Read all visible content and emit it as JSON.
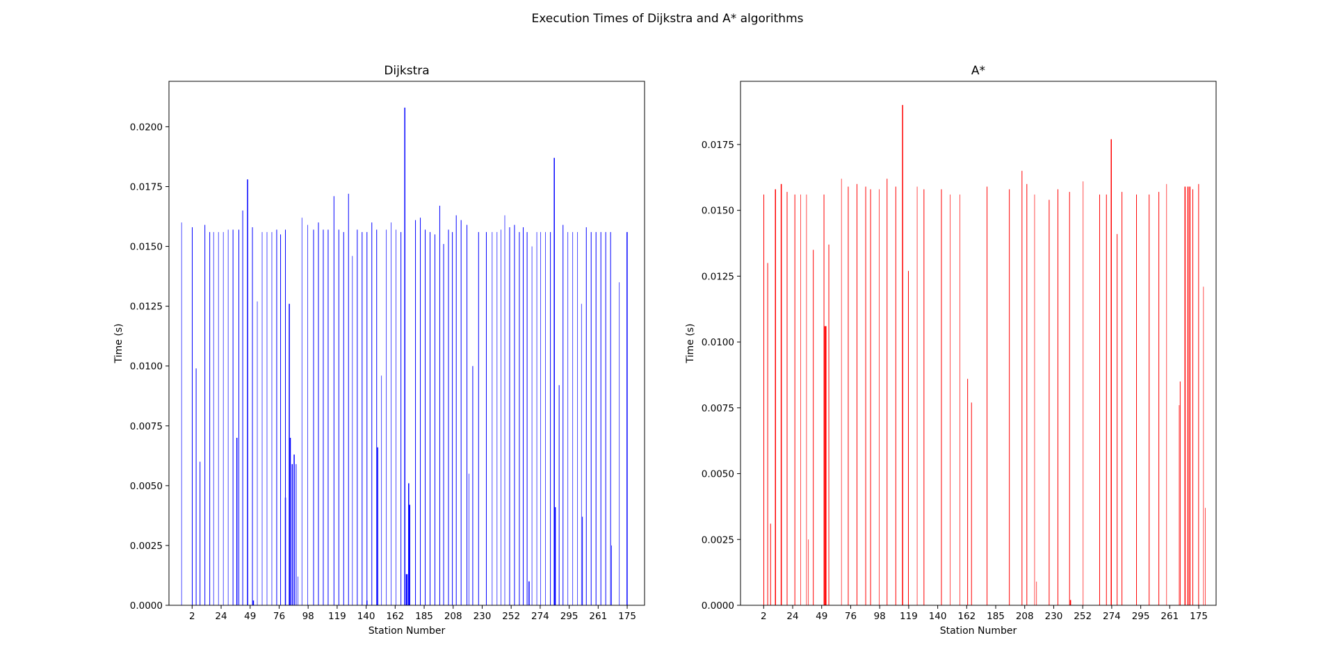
{
  "figure_title": "Execution Times of Dijkstra and A* algorithms",
  "chart_data": [
    {
      "type": "bar",
      "title": "Dijkstra",
      "xlabel": "Station Number",
      "ylabel": "Time (s)",
      "ylim": [
        0,
        0.0219
      ],
      "y_ticks": [
        "0.0000",
        "0.0025",
        "0.0050",
        "0.0075",
        "0.0100",
        "0.0125",
        "0.0150",
        "0.0175",
        "0.0200"
      ],
      "y_tick_values": [
        0,
        0.0025,
        0.005,
        0.0075,
        0.01,
        0.0125,
        0.015,
        0.0175,
        0.02
      ],
      "x_tick_labels": [
        "2",
        "24",
        "49",
        "76",
        "98",
        "119",
        "140",
        "162",
        "185",
        "208",
        "230",
        "252",
        "274",
        "295",
        "261",
        "175"
      ],
      "color": "#0000ff",
      "grid": false,
      "bars": [
        {
          "x": 1.3,
          "y": 0.016,
          "w": 0.7
        },
        {
          "x": 2.4,
          "y": 0.0158,
          "w": 1.0
        },
        {
          "x": 2.8,
          "y": 0.0099,
          "w": 1.0
        },
        {
          "x": 3.2,
          "y": 0.006,
          "w": 1.0
        },
        {
          "x": 3.7,
          "y": 0.0159,
          "w": 1.0
        },
        {
          "x": 4.2,
          "y": 0.0156,
          "w": 1.0
        },
        {
          "x": 4.6,
          "y": 0.0156,
          "w": 0.7
        },
        {
          "x": 5.1,
          "y": 0.0156,
          "w": 0.7
        },
        {
          "x": 5.6,
          "y": 0.0156,
          "w": 0.7
        },
        {
          "x": 6.1,
          "y": 0.0157,
          "w": 0.7
        },
        {
          "x": 6.6,
          "y": 0.0157,
          "w": 1.0
        },
        {
          "x": 7.0,
          "y": 0.007,
          "w": 1.5
        },
        {
          "x": 7.2,
          "y": 0.0157,
          "w": 1.0
        },
        {
          "x": 7.6,
          "y": 0.0165,
          "w": 1.0
        },
        {
          "x": 8.1,
          "y": 0.0178,
          "w": 1.5
        },
        {
          "x": 8.6,
          "y": 0.0158,
          "w": 1.0
        },
        {
          "x": 8.7,
          "y": 0.0002,
          "w": 1.5
        },
        {
          "x": 9.1,
          "y": 0.0127,
          "w": 0.7
        },
        {
          "x": 9.6,
          "y": 0.0156,
          "w": 0.7
        },
        {
          "x": 10.1,
          "y": 0.0156,
          "w": 0.7
        },
        {
          "x": 10.6,
          "y": 0.0156,
          "w": 0.7
        },
        {
          "x": 11.1,
          "y": 0.0157,
          "w": 1.0
        },
        {
          "x": 11.5,
          "y": 0.0155,
          "w": 1.0
        },
        {
          "x": 12.0,
          "y": 0.0157,
          "w": 1.0
        },
        {
          "x": 12.0,
          "y": 0.0045,
          "w": 1.5
        },
        {
          "x": 12.4,
          "y": 0.0126,
          "w": 1.5
        },
        {
          "x": 12.5,
          "y": 0.007,
          "w": 1.5
        },
        {
          "x": 12.7,
          "y": 0.0059,
          "w": 1.5
        },
        {
          "x": 12.9,
          "y": 0.0063,
          "w": 1.5
        },
        {
          "x": 13.1,
          "y": 0.0059,
          "w": 1.0
        },
        {
          "x": 13.3,
          "y": 0.0012,
          "w": 0.7
        },
        {
          "x": 13.7,
          "y": 0.0162,
          "w": 0.7
        },
        {
          "x": 14.3,
          "y": 0.0159,
          "w": 0.7
        },
        {
          "x": 14.9,
          "y": 0.0157,
          "w": 1.0
        },
        {
          "x": 15.4,
          "y": 0.016,
          "w": 1.0
        },
        {
          "x": 15.9,
          "y": 0.0157,
          "w": 1.0
        },
        {
          "x": 16.4,
          "y": 0.0157,
          "w": 1.0
        },
        {
          "x": 17.0,
          "y": 0.0171,
          "w": 1.0
        },
        {
          "x": 17.5,
          "y": 0.0157,
          "w": 1.0
        },
        {
          "x": 18.0,
          "y": 0.0156,
          "w": 1.0
        },
        {
          "x": 18.5,
          "y": 0.0172,
          "w": 1.0
        },
        {
          "x": 18.9,
          "y": 0.0146,
          "w": 0.7
        },
        {
          "x": 19.4,
          "y": 0.0157,
          "w": 1.0
        },
        {
          "x": 19.9,
          "y": 0.0156,
          "w": 1.0
        },
        {
          "x": 20.4,
          "y": 0.0156,
          "w": 1.0
        },
        {
          "x": 20.4,
          "y": 0.0002,
          "w": 1.5
        },
        {
          "x": 20.9,
          "y": 0.016,
          "w": 1.0
        },
        {
          "x": 21.4,
          "y": 0.0157,
          "w": 1.0
        },
        {
          "x": 21.5,
          "y": 0.0066,
          "w": 1.5
        },
        {
          "x": 21.9,
          "y": 0.0096,
          "w": 0.7
        },
        {
          "x": 22.4,
          "y": 0.0157,
          "w": 0.7
        },
        {
          "x": 22.9,
          "y": 0.016,
          "w": 0.7
        },
        {
          "x": 23.4,
          "y": 0.0157,
          "w": 0.7
        },
        {
          "x": 23.9,
          "y": 0.0156,
          "w": 1.0
        },
        {
          "x": 24.3,
          "y": 0.0208,
          "w": 1.5
        },
        {
          "x": 24.5,
          "y": 0.0013,
          "w": 2.5
        },
        {
          "x": 24.7,
          "y": 0.0051,
          "w": 1.5
        },
        {
          "x": 24.8,
          "y": 0.0042,
          "w": 1.5
        },
        {
          "x": 25.4,
          "y": 0.0161,
          "w": 1.0
        },
        {
          "x": 25.9,
          "y": 0.0162,
          "w": 1.0
        },
        {
          "x": 26.4,
          "y": 0.0157,
          "w": 1.0
        },
        {
          "x": 26.9,
          "y": 0.0156,
          "w": 1.0
        },
        {
          "x": 27.4,
          "y": 0.0155,
          "w": 1.0
        },
        {
          "x": 27.9,
          "y": 0.0167,
          "w": 1.0
        },
        {
          "x": 28.3,
          "y": 0.0151,
          "w": 1.0
        },
        {
          "x": 28.8,
          "y": 0.0157,
          "w": 1.0
        },
        {
          "x": 29.2,
          "y": 0.0156,
          "w": 1.0
        },
        {
          "x": 29.6,
          "y": 0.0163,
          "w": 1.0
        },
        {
          "x": 30.1,
          "y": 0.0161,
          "w": 1.0
        },
        {
          "x": 30.7,
          "y": 0.0159,
          "w": 1.0
        },
        {
          "x": 30.9,
          "y": 0.0055,
          "w": 0.7
        },
        {
          "x": 31.3,
          "y": 0.01,
          "w": 1.0
        },
        {
          "x": 31.9,
          "y": 0.0156,
          "w": 1.0
        },
        {
          "x": 32.7,
          "y": 0.0156,
          "w": 1.0
        },
        {
          "x": 33.3,
          "y": 0.0156,
          "w": 0.7
        },
        {
          "x": 33.8,
          "y": 0.0156,
          "w": 0.7
        },
        {
          "x": 34.2,
          "y": 0.0157,
          "w": 0.7
        },
        {
          "x": 34.6,
          "y": 0.0163,
          "w": 0.7
        },
        {
          "x": 35.1,
          "y": 0.0158,
          "w": 1.0
        },
        {
          "x": 35.6,
          "y": 0.0159,
          "w": 1.0
        },
        {
          "x": 36.1,
          "y": 0.0156,
          "w": 1.0
        },
        {
          "x": 36.5,
          "y": 0.0158,
          "w": 1.0
        },
        {
          "x": 36.9,
          "y": 0.0156,
          "w": 1.0
        },
        {
          "x": 37.1,
          "y": 0.001,
          "w": 1.5
        },
        {
          "x": 37.4,
          "y": 0.015,
          "w": 0.7
        },
        {
          "x": 37.9,
          "y": 0.0156,
          "w": 0.7
        },
        {
          "x": 38.3,
          "y": 0.0156,
          "w": 0.7
        },
        {
          "x": 38.8,
          "y": 0.0156,
          "w": 0.7
        },
        {
          "x": 39.3,
          "y": 0.0156,
          "w": 1.0
        },
        {
          "x": 39.7,
          "y": 0.0187,
          "w": 1.5
        },
        {
          "x": 39.8,
          "y": 0.0041,
          "w": 1.5
        },
        {
          "x": 40.2,
          "y": 0.0092,
          "w": 1.0
        },
        {
          "x": 40.6,
          "y": 0.0159,
          "w": 1.0
        },
        {
          "x": 41.1,
          "y": 0.0156,
          "w": 0.7
        },
        {
          "x": 41.6,
          "y": 0.0156,
          "w": 0.7
        },
        {
          "x": 42.1,
          "y": 0.0156,
          "w": 0.7
        },
        {
          "x": 42.5,
          "y": 0.0126,
          "w": 0.7
        },
        {
          "x": 42.6,
          "y": 0.0037,
          "w": 1.0
        },
        {
          "x": 43.0,
          "y": 0.0158,
          "w": 1.0
        },
        {
          "x": 43.5,
          "y": 0.0156,
          "w": 1.0
        },
        {
          "x": 44.0,
          "y": 0.0156,
          "w": 1.0
        },
        {
          "x": 44.5,
          "y": 0.0156,
          "w": 1.0
        },
        {
          "x": 45.0,
          "y": 0.0156,
          "w": 1.0
        },
        {
          "x": 45.5,
          "y": 0.0156,
          "w": 1.0
        },
        {
          "x": 45.6,
          "y": 0.0025,
          "w": 0.7
        },
        {
          "x": 46.4,
          "y": 0.0135,
          "w": 0.7
        },
        {
          "x": 47.2,
          "y": 0.0156,
          "w": 1.5
        }
      ]
    },
    {
      "type": "bar",
      "title": "A*",
      "xlabel": "Station Number",
      "ylabel": "Time (s)",
      "ylim": [
        0,
        0.0199
      ],
      "y_ticks": [
        "0.0000",
        "0.0025",
        "0.0050",
        "0.0075",
        "0.0100",
        "0.0125",
        "0.0150",
        "0.0175"
      ],
      "y_tick_values": [
        0,
        0.0025,
        0.005,
        0.0075,
        0.01,
        0.0125,
        0.015,
        0.0175
      ],
      "x_tick_labels": [
        "2",
        "24",
        "49",
        "76",
        "98",
        "119",
        "140",
        "162",
        "185",
        "208",
        "230",
        "252",
        "274",
        "295",
        "261",
        "175"
      ],
      "color": "#ff0000",
      "grid": false,
      "bars": [
        {
          "x": 2.4,
          "y": 0.0156,
          "w": 1.0
        },
        {
          "x": 2.8,
          "y": 0.013,
          "w": 1.0
        },
        {
          "x": 3.1,
          "y": 0.0031,
          "w": 1.0
        },
        {
          "x": 3.6,
          "y": 0.0158,
          "w": 1.5
        },
        {
          "x": 4.2,
          "y": 0.016,
          "w": 1.5
        },
        {
          "x": 4.8,
          "y": 0.0157,
          "w": 1.0
        },
        {
          "x": 5.6,
          "y": 0.0156,
          "w": 1.0
        },
        {
          "x": 6.2,
          "y": 0.0156,
          "w": 0.7
        },
        {
          "x": 6.8,
          "y": 0.0156,
          "w": 0.7
        },
        {
          "x": 7.0,
          "y": 0.0025,
          "w": 0.7
        },
        {
          "x": 7.5,
          "y": 0.0135,
          "w": 1.0
        },
        {
          "x": 8.6,
          "y": 0.0156,
          "w": 1.0
        },
        {
          "x": 8.7,
          "y": 0.0106,
          "w": 1.5
        },
        {
          "x": 8.8,
          "y": 0.0106,
          "w": 1.5
        },
        {
          "x": 9.1,
          "y": 0.0137,
          "w": 1.0
        },
        {
          "x": 10.4,
          "y": 0.0162,
          "w": 0.7
        },
        {
          "x": 11.1,
          "y": 0.0159,
          "w": 1.0
        },
        {
          "x": 12.0,
          "y": 0.016,
          "w": 1.0
        },
        {
          "x": 12.9,
          "y": 0.0159,
          "w": 1.0
        },
        {
          "x": 13.4,
          "y": 0.0158,
          "w": 1.0
        },
        {
          "x": 14.3,
          "y": 0.0158,
          "w": 0.7
        },
        {
          "x": 15.1,
          "y": 0.0162,
          "w": 1.0
        },
        {
          "x": 16.0,
          "y": 0.0159,
          "w": 1.0
        },
        {
          "x": 16.7,
          "y": 0.019,
          "w": 1.5
        },
        {
          "x": 17.3,
          "y": 0.0127,
          "w": 1.0
        },
        {
          "x": 18.2,
          "y": 0.0159,
          "w": 0.7
        },
        {
          "x": 18.9,
          "y": 0.0158,
          "w": 1.0
        },
        {
          "x": 20.7,
          "y": 0.0158,
          "w": 1.0
        },
        {
          "x": 21.6,
          "y": 0.0156,
          "w": 0.7
        },
        {
          "x": 22.6,
          "y": 0.0156,
          "w": 0.7
        },
        {
          "x": 23.4,
          "y": 0.0086,
          "w": 1.0
        },
        {
          "x": 23.8,
          "y": 0.0077,
          "w": 1.0
        },
        {
          "x": 25.4,
          "y": 0.0159,
          "w": 1.0
        },
        {
          "x": 27.7,
          "y": 0.0158,
          "w": 1.0
        },
        {
          "x": 29.0,
          "y": 0.0165,
          "w": 1.0
        },
        {
          "x": 29.5,
          "y": 0.016,
          "w": 1.0
        },
        {
          "x": 30.3,
          "y": 0.0156,
          "w": 0.7
        },
        {
          "x": 30.5,
          "y": 0.0009,
          "w": 0.7
        },
        {
          "x": 31.8,
          "y": 0.0154,
          "w": 1.0
        },
        {
          "x": 32.7,
          "y": 0.0158,
          "w": 1.0
        },
        {
          "x": 33.9,
          "y": 0.0157,
          "w": 1.0
        },
        {
          "x": 34.0,
          "y": 0.0002,
          "w": 1.5
        },
        {
          "x": 35.3,
          "y": 0.0161,
          "w": 0.7
        },
        {
          "x": 37.0,
          "y": 0.0156,
          "w": 1.0
        },
        {
          "x": 37.7,
          "y": 0.0156,
          "w": 1.0
        },
        {
          "x": 38.2,
          "y": 0.0177,
          "w": 1.5
        },
        {
          "x": 38.8,
          "y": 0.0141,
          "w": 1.0
        },
        {
          "x": 39.3,
          "y": 0.0157,
          "w": 1.0
        },
        {
          "x": 40.8,
          "y": 0.0156,
          "w": 1.0
        },
        {
          "x": 42.1,
          "y": 0.0156,
          "w": 1.0
        },
        {
          "x": 43.1,
          "y": 0.0157,
          "w": 1.0
        },
        {
          "x": 43.9,
          "y": 0.016,
          "w": 0.7
        },
        {
          "x": 45.2,
          "y": 0.0076,
          "w": 0.7
        },
        {
          "x": 45.3,
          "y": 0.0085,
          "w": 1.0
        },
        {
          "x": 45.8,
          "y": 0.0159,
          "w": 1.5
        },
        {
          "x": 46.1,
          "y": 0.0159,
          "w": 1.5
        },
        {
          "x": 46.3,
          "y": 0.0159,
          "w": 1.5
        },
        {
          "x": 46.6,
          "y": 0.0158,
          "w": 1.0
        },
        {
          "x": 47.2,
          "y": 0.016,
          "w": 1.0
        },
        {
          "x": 47.7,
          "y": 0.0121,
          "w": 0.7
        },
        {
          "x": 47.9,
          "y": 0.0037,
          "w": 0.7
        }
      ]
    }
  ]
}
